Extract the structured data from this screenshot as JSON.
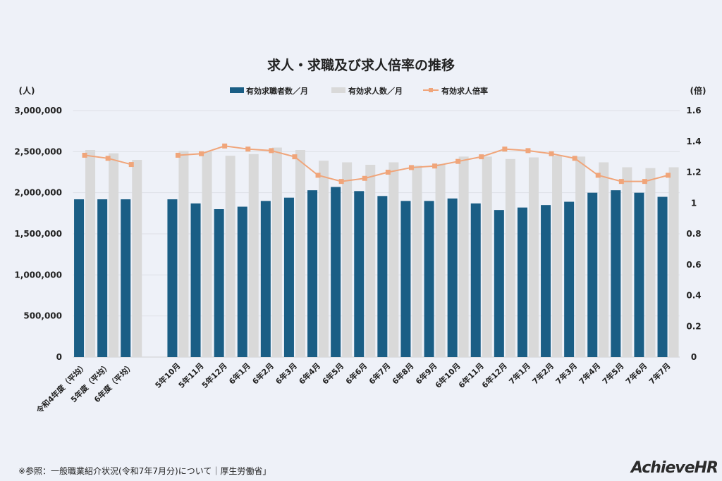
{
  "chart_data": {
    "type": "bar+line",
    "title": "求人・求職及び求人倍率の推移",
    "y_left_label": "(人)",
    "y_right_label": "(倍)",
    "y_left_lim": [
      0,
      3000000
    ],
    "y_left_ticks": [
      "0",
      "500,000",
      "1,000,000",
      "1,500,000",
      "2,000,000",
      "2,500,000",
      "3,000,000"
    ],
    "y_right_lim": [
      0,
      1.6
    ],
    "y_right_ticks": [
      "0",
      "0.2",
      "0.4",
      "0.6",
      "0.8",
      "1",
      "1.2",
      "1.4",
      "1.6"
    ],
    "grid": true,
    "legend_position": "top",
    "categories": [
      "令和4年度（平均）",
      "5年度（平均）",
      "6年度（平均）",
      "5年10月",
      "5年11月",
      "5年12月",
      "6年1月",
      "6年2月",
      "6年3月",
      "6年4月",
      "6年5月",
      "6年6月",
      "6年7月",
      "6年8月",
      "6年9月",
      "6年10月",
      "6年11月",
      "6年12月",
      "7年1月",
      "7年2月",
      "7年3月",
      "7年4月",
      "7年5月",
      "7年6月",
      "7年7月"
    ],
    "series": [
      {
        "name": "有効求職者数／月",
        "type": "bar",
        "axis": "left",
        "color": "#1a5e85",
        "values": [
          1920000,
          1920000,
          1920000,
          1920000,
          1870000,
          1800000,
          1830000,
          1900000,
          1940000,
          2030000,
          2070000,
          2020000,
          1960000,
          1900000,
          1900000,
          1930000,
          1870000,
          1790000,
          1820000,
          1850000,
          1890000,
          2000000,
          2030000,
          2000000,
          1950000
        ]
      },
      {
        "name": "有効求人数／月",
        "type": "bar",
        "axis": "left",
        "color": "#d9d9d9",
        "values": [
          2520000,
          2480000,
          2400000,
          2510000,
          2500000,
          2450000,
          2470000,
          2550000,
          2520000,
          2390000,
          2370000,
          2340000,
          2370000,
          2330000,
          2350000,
          2440000,
          2440000,
          2410000,
          2430000,
          2450000,
          2440000,
          2370000,
          2310000,
          2300000,
          2310000
        ]
      },
      {
        "name": "有効求人倍率",
        "type": "line",
        "axis": "right",
        "color": "#f0a57a",
        "values": [
          1.31,
          1.29,
          1.25,
          1.31,
          1.32,
          1.37,
          1.35,
          1.34,
          1.3,
          1.18,
          1.14,
          1.16,
          1.2,
          1.23,
          1.24,
          1.27,
          1.3,
          1.35,
          1.34,
          1.32,
          1.29,
          1.18,
          1.14,
          1.14,
          1.18
        ]
      }
    ]
  },
  "footer": {
    "source": "※参照：一般職業紹介状況(令和7年7月分)について｜厚生労働省」",
    "logo_main": "Achieve",
    "logo_accent": "HR"
  }
}
